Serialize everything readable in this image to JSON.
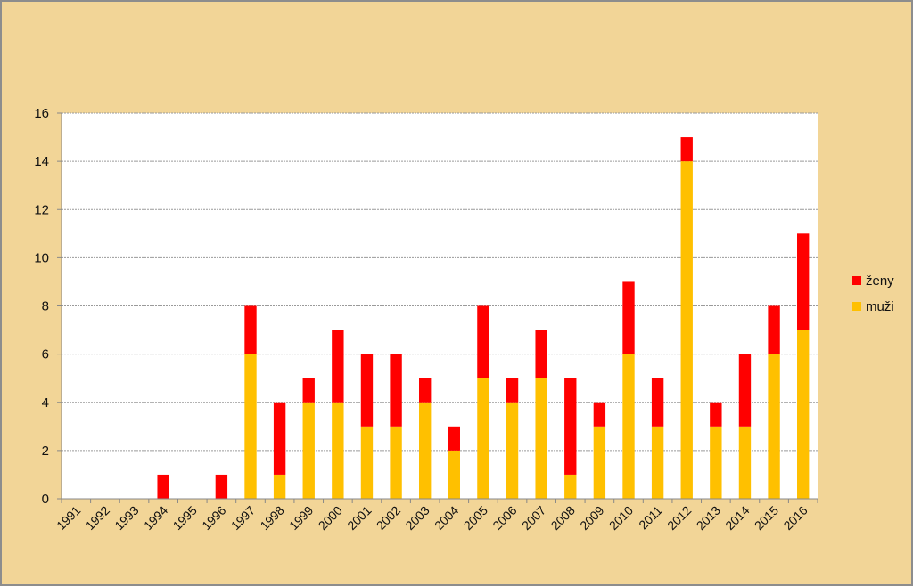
{
  "chart_data": {
    "type": "bar",
    "stacked": true,
    "categories": [
      "1991",
      "1992",
      "1993",
      "1994",
      "1995",
      "1996",
      "1997",
      "1998",
      "1999",
      "2000",
      "2001",
      "2002",
      "2003",
      "2004",
      "2005",
      "2006",
      "2007",
      "2008",
      "2009",
      "2010",
      "2011",
      "2012",
      "2013",
      "2014",
      "2015",
      "2016"
    ],
    "series": [
      {
        "name": "muži",
        "color": "#ffc000",
        "values": [
          0,
          0,
          0,
          0,
          0,
          0,
          6,
          1,
          4,
          4,
          3,
          3,
          4,
          2,
          5,
          4,
          5,
          1,
          3,
          6,
          3,
          14,
          3,
          3,
          6,
          7
        ]
      },
      {
        "name": "ženy",
        "color": "#ff0000",
        "values": [
          0,
          0,
          0,
          1,
          0,
          1,
          2,
          3,
          1,
          3,
          3,
          3,
          1,
          1,
          3,
          1,
          2,
          4,
          1,
          3,
          2,
          1,
          1,
          3,
          2,
          4
        ]
      }
    ],
    "legend_order": [
      "ženy",
      "muži"
    ],
    "ylim": [
      0,
      16
    ],
    "yticks": [
      "0",
      "2",
      "4",
      "6",
      "8",
      "10",
      "12",
      "14",
      "16"
    ],
    "grid": true,
    "legend_position": "right",
    "title": "",
    "xlabel": "",
    "ylabel": ""
  }
}
